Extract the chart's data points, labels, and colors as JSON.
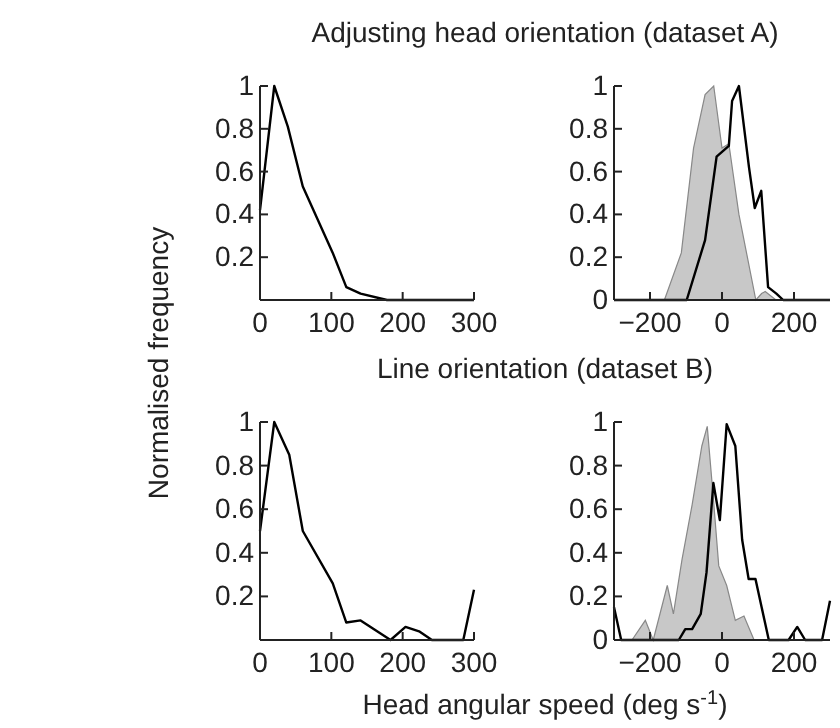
{
  "chart_data": [
    {
      "type": "line",
      "title": "Adjusting head orientation (dataset A)",
      "ylabel": "Normalised frequency",
      "xlim": [
        0,
        300
      ],
      "xticks": [
        0,
        100,
        200,
        300
      ],
      "ylim": [
        0,
        1
      ],
      "yticks": [
        0.2,
        0.4,
        0.6,
        0.8,
        1
      ],
      "series": [
        {
          "color": "#000000",
          "x": [
            0,
            20,
            39,
            60,
            102,
            121,
            141,
            178,
            300
          ],
          "values": [
            0.42,
            1,
            0.81,
            0.53,
            0.22,
            0.06,
            0.03,
            0,
            0
          ]
        }
      ]
    },
    {
      "type": "area",
      "xlim": [
        -300,
        300
      ],
      "xticks": [
        -200,
        0,
        200
      ],
      "ylim": [
        0,
        1
      ],
      "yticks": [
        0,
        0.2,
        0.4,
        0.6,
        0.8,
        1
      ],
      "series": [
        {
          "color": "#c8c8c8",
          "x": [
            -160,
            -113,
            -79,
            -47,
            -23,
            0,
            19,
            47,
            94,
            110,
            120,
            135,
            150
          ],
          "values": [
            0,
            0.22,
            0.71,
            0.96,
            1,
            0.71,
            0.73,
            0.4,
            0,
            0.03,
            0.04,
            0.02,
            0
          ]
        },
        {
          "type": "line",
          "color": "#000000",
          "x": [
            -300,
            -98,
            -47,
            -15,
            19,
            28,
            47,
            75,
            91,
            109,
            128,
            151,
            170,
            300
          ],
          "values": [
            0,
            0,
            0.28,
            0.67,
            0.72,
            0.93,
            1,
            0.62,
            0.43,
            0.51,
            0.06,
            0.03,
            0,
            0
          ]
        }
      ]
    },
    {
      "type": "line",
      "title": "Line orientation (dataset B)",
      "xlim": [
        0,
        300
      ],
      "xticks": [
        0,
        100,
        200,
        300
      ],
      "ylim": [
        0,
        1
      ],
      "yticks": [
        0.2,
        0.4,
        0.6,
        0.8,
        1
      ],
      "series": [
        {
          "color": "#000000",
          "x": [
            0,
            20,
            41,
            60,
            102,
            121,
            141,
            183,
            204,
            223,
            241,
            285,
            300
          ],
          "values": [
            0.5,
            1,
            0.85,
            0.5,
            0.26,
            0.08,
            0.09,
            0,
            0.06,
            0.04,
            0,
            0,
            0.23
          ]
        }
      ]
    },
    {
      "type": "area",
      "xlabel": "Head angular speed (deg s$^{-1}$)",
      "xlim": [
        -300,
        300
      ],
      "xticks": [
        -200,
        0,
        200
      ],
      "ylim": [
        0,
        1
      ],
      "yticks": [
        0,
        0.2,
        0.4,
        0.6,
        0.8,
        1
      ],
      "series": [
        {
          "color": "#c8c8c8",
          "x": [
            -250,
            -213,
            -191,
            -152,
            -135,
            -111,
            -83,
            -56,
            -41,
            -24,
            -9,
            13,
            37,
            61,
            89
          ],
          "values": [
            0,
            0.09,
            0,
            0.25,
            0.12,
            0.37,
            0.62,
            0.89,
            0.98,
            0.65,
            0.34,
            0.25,
            0.09,
            0.11,
            0
          ]
        },
        {
          "type": "line",
          "color": "#000000",
          "x": [
            -300,
            -280,
            -120,
            -102,
            -83,
            -59,
            -43,
            -24,
            -6,
            13,
            37,
            56,
            74,
            93,
            130,
            185,
            209,
            231,
            278,
            300
          ],
          "values": [
            0.15,
            0,
            0,
            0.05,
            0.05,
            0.12,
            0.31,
            0.72,
            0.55,
            0.99,
            0.89,
            0.46,
            0.28,
            0.28,
            0,
            0,
            0.06,
            0,
            0,
            0.18
          ]
        }
      ]
    }
  ]
}
